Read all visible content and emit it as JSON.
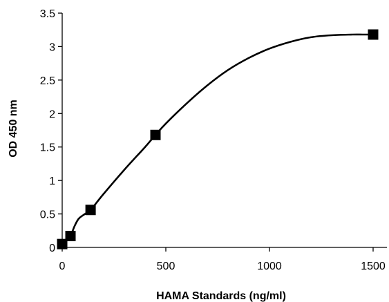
{
  "chart_data": {
    "type": "scatter",
    "title": "",
    "xlabel": "HAMA Standards (ng/ml)",
    "ylabel": "OD 450 nm",
    "xlim": [
      0,
      1500
    ],
    "ylim": [
      0,
      3.5
    ],
    "x_ticks": [
      "0",
      "500",
      "1000",
      "1500"
    ],
    "y_ticks": [
      "0",
      "0.5",
      "1",
      "1.5",
      "2",
      "2.5",
      "3",
      "3.5"
    ],
    "grid": false,
    "legend": "none",
    "series": [
      {
        "marker": "square",
        "color": "#000000",
        "x": [
          0,
          40,
          137,
          450,
          1500
        ],
        "y": [
          0.05,
          0.17,
          0.56,
          1.68,
          3.18
        ]
      }
    ],
    "fit_line": {
      "color": "#000000",
      "x": [
        0,
        20,
        40,
        60,
        80,
        110,
        137,
        200,
        300,
        400,
        450,
        500,
        600,
        700,
        800,
        900,
        1000,
        1100,
        1200,
        1300,
        1400,
        1450,
        1500
      ],
      "y": [
        0.05,
        0.11,
        0.17,
        0.32,
        0.43,
        0.5,
        0.56,
        0.8,
        1.16,
        1.5,
        1.68,
        1.85,
        2.15,
        2.42,
        2.65,
        2.83,
        2.97,
        3.07,
        3.14,
        3.17,
        3.18,
        3.18,
        3.18
      ]
    }
  }
}
